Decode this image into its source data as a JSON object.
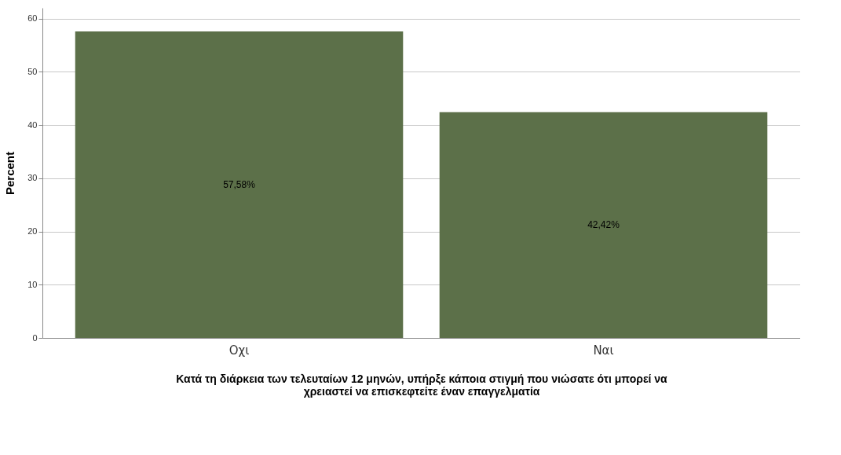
{
  "chart_data": {
    "type": "bar",
    "xlabel": "Κατά τη διάρκεια των τελευταίων 12 μηνών, υπήρξε κάποια στιγμή που νιώσατε ότι μπορεί να χρειαστεί να επισκεφτείτε έναν επαγγελματία",
    "ylabel": "Percent",
    "categories": [
      "Οχι",
      "Ναι"
    ],
    "values": [
      57.58,
      42.42
    ],
    "value_labels": [
      "57,58%",
      "42,42%"
    ],
    "color": "#5c7049",
    "ylim": [
      0,
      62
    ],
    "yticks": [
      0,
      10,
      20,
      30,
      40,
      50,
      60
    ],
    "grid": "y"
  }
}
